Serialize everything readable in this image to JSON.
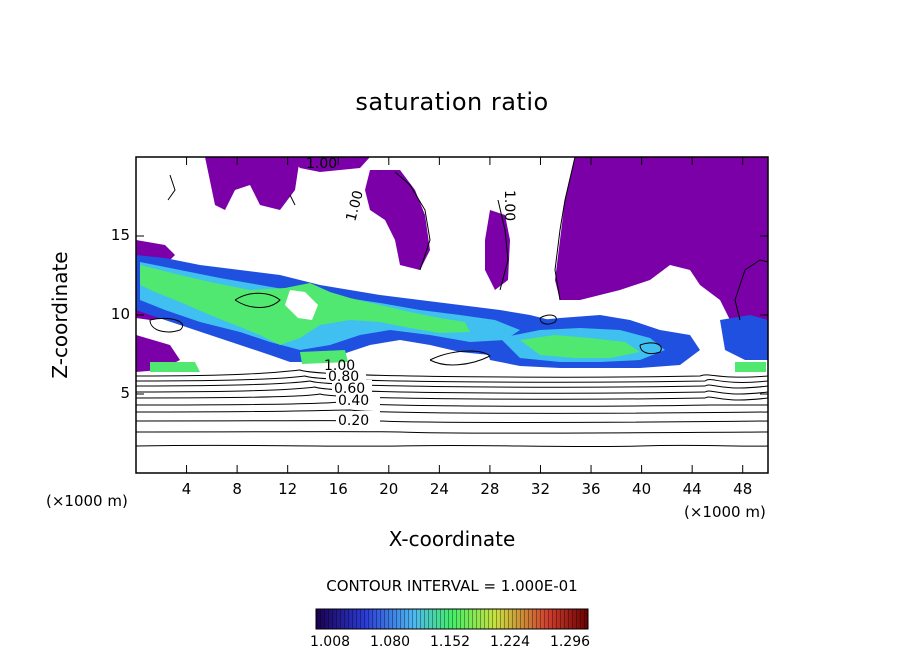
{
  "chart_data": {
    "type": "heatmap",
    "title": "saturation ratio",
    "xlabel": "X-coordinate",
    "ylabel": "Z-coordinate",
    "x_unit": "(×1000 m)",
    "y_unit": "(×1000 m)",
    "xlim": [
      0,
      50
    ],
    "ylim": [
      0,
      20
    ],
    "x_ticks": [
      4,
      8,
      12,
      16,
      20,
      24,
      28,
      32,
      36,
      40,
      44,
      48
    ],
    "y_ticks": [
      5,
      10,
      15
    ],
    "contour_labels": [
      "0.20",
      "0.40",
      "0.60",
      "0.80",
      "1.00",
      "1.00",
      "1.00",
      "1.00"
    ],
    "contour_interval_text": "CONTOUR INTERVAL = 1.000E-01",
    "colorbar": {
      "ticks": [
        "1.008",
        "1.080",
        "1.152",
        "1.224",
        "1.296"
      ],
      "colors": [
        "#1a0050",
        "#2b3bd6",
        "#4db8f0",
        "#44ee66",
        "#c8e040",
        "#d04030",
        "#6a0000"
      ]
    },
    "fill_colors": {
      "purple": "#7b00a8",
      "blue": "#2050e0",
      "cyan": "#40c0f0",
      "green": "#50e870"
    }
  }
}
